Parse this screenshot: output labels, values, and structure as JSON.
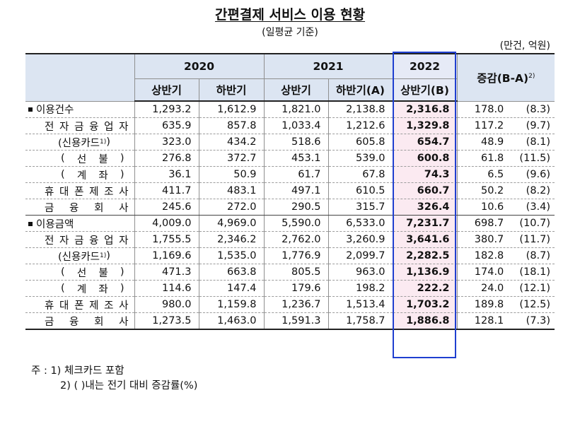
{
  "title": "간편결제 서비스 이용 현황",
  "subtitle": "(일평균 기준)",
  "unit": "(만건, 억원)",
  "headers": {
    "year_2020": "2020",
    "year_2021": "2021",
    "year_2022": "2022",
    "change": "증감(B-A)",
    "change_note": "2)",
    "h1_2020": "상반기",
    "h2_2020": "하반기",
    "h1_2021": "상반기",
    "h2_2021": "하반기(A)",
    "h1_2022": "상반기(B)"
  },
  "rows": [
    {
      "label": "이용건수",
      "note": "",
      "values": [
        "1,293.2",
        "1,612.9",
        "1,821.0",
        "2,138.8",
        "2,316.8"
      ],
      "change": "178.0",
      "change_pct": "(8.3)"
    },
    {
      "label": "전자금융업자",
      "note": "",
      "values": [
        "635.9",
        "857.8",
        "1,033.4",
        "1,212.6",
        "1,329.8"
      ],
      "change": "117.2",
      "change_pct": "(9.7)"
    },
    {
      "label": "(신용카드",
      "note": "1)",
      "close": ")",
      "values": [
        "323.0",
        "434.2",
        "518.6",
        "605.8",
        "654.7"
      ],
      "change": "48.9",
      "change_pct": "(8.1)"
    },
    {
      "label": "(선불)",
      "note": "",
      "values": [
        "276.8",
        "372.7",
        "453.1",
        "539.0",
        "600.8"
      ],
      "change": "61.8",
      "change_pct": "(11.5)"
    },
    {
      "label": "(계좌)",
      "note": "",
      "values": [
        "36.1",
        "50.9",
        "61.7",
        "67.8",
        "74.3"
      ],
      "change": "6.5",
      "change_pct": "(9.6)"
    },
    {
      "label": "휴대폰제조사",
      "note": "",
      "values": [
        "411.7",
        "483.1",
        "497.1",
        "610.5",
        "660.7"
      ],
      "change": "50.2",
      "change_pct": "(8.2)"
    },
    {
      "label": "금융회사",
      "note": "",
      "values": [
        "245.6",
        "272.0",
        "290.5",
        "315.7",
        "326.4"
      ],
      "change": "10.6",
      "change_pct": "(3.4)"
    },
    {
      "label": "이용금액",
      "note": "",
      "values": [
        "4,009.0",
        "4,969.0",
        "5,590.0",
        "6,533.0",
        "7,231.7"
      ],
      "change": "698.7",
      "change_pct": "(10.7)"
    },
    {
      "label": "전자금융업자",
      "note": "",
      "values": [
        "1,755.5",
        "2,346.2",
        "2,762.0",
        "3,260.9",
        "3,641.6"
      ],
      "change": "380.7",
      "change_pct": "(11.7)"
    },
    {
      "label": "(신용카드",
      "note": "1)",
      "close": ")",
      "values": [
        "1,169.6",
        "1,535.0",
        "1,776.9",
        "2,099.7",
        "2,282.5"
      ],
      "change": "182.8",
      "change_pct": "(8.7)"
    },
    {
      "label": "(선불)",
      "note": "",
      "values": [
        "471.3",
        "663.8",
        "805.5",
        "963.0",
        "1,136.9"
      ],
      "change": "174.0",
      "change_pct": "(18.1)"
    },
    {
      "label": "(계좌)",
      "note": "",
      "values": [
        "114.6",
        "147.4",
        "179.6",
        "198.2",
        "222.2"
      ],
      "change": "24.0",
      "change_pct": "(12.1)"
    },
    {
      "label": "휴대폰제조사",
      "note": "",
      "values": [
        "980.0",
        "1,159.8",
        "1,236.7",
        "1,513.4",
        "1,703.2"
      ],
      "change": "189.8",
      "change_pct": "(12.5)"
    },
    {
      "label": "금융회사",
      "note": "",
      "values": [
        "1,273.5",
        "1,463.0",
        "1,591.3",
        "1,758.7",
        "1,886.8"
      ],
      "change": "128.1",
      "change_pct": "(7.3)"
    }
  ],
  "footnotes": {
    "note1": "주 : 1) 체크카드 포함",
    "note2": "2) ( )내는 전기 대비 증감률(%)"
  },
  "colors": {
    "header_bg": "#dce5f2",
    "highlight_border": "#1f3fd0",
    "highlight_bg": "#fbeaf1"
  }
}
